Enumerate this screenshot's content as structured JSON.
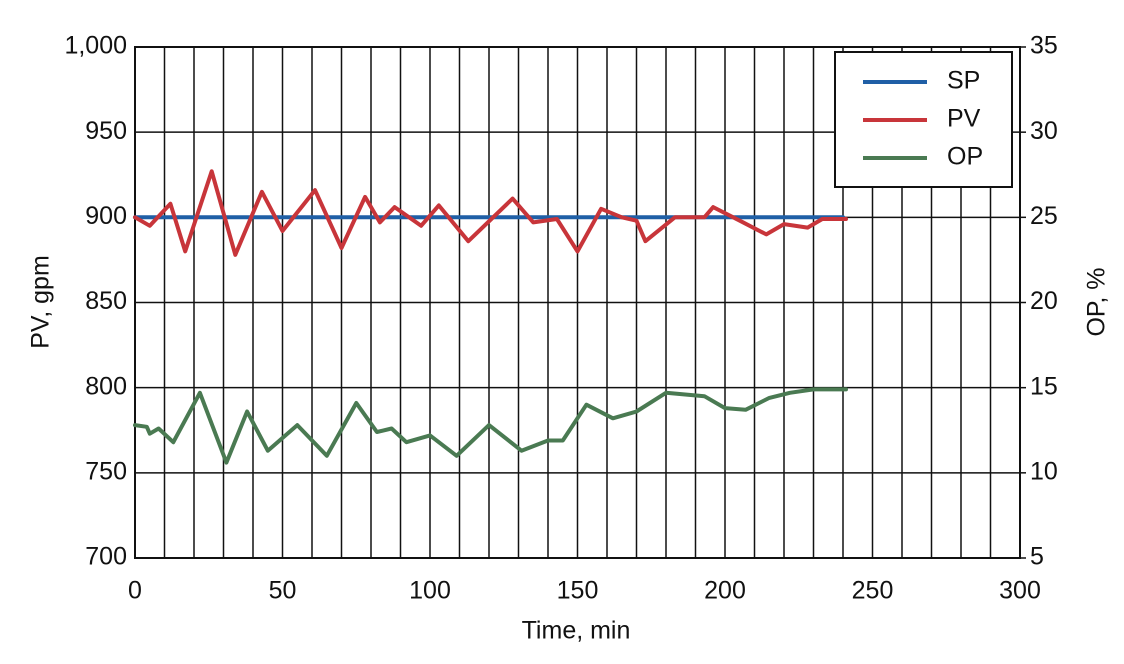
{
  "chart_data": {
    "type": "line",
    "x_label": "Time, min",
    "y_label": "PV, gpm",
    "y2_label": "OP, %",
    "xlim": [
      0,
      300
    ],
    "xticks": [
      0,
      50,
      100,
      150,
      200,
      250,
      300
    ],
    "xgrid": [
      0,
      10,
      20,
      30,
      40,
      50,
      60,
      70,
      80,
      90,
      100,
      110,
      120,
      130,
      140,
      150,
      160,
      170,
      180,
      190,
      200,
      210,
      220,
      230,
      240,
      250,
      260,
      270,
      280,
      290,
      300
    ],
    "ylim": [
      700,
      1000
    ],
    "yticks": [
      700,
      750,
      800,
      850,
      900,
      950,
      {
        "value": 1000,
        "label": "1,000"
      }
    ],
    "y2lim": [
      5,
      35
    ],
    "y2ticks": [
      5,
      10,
      15,
      20,
      25,
      30,
      35
    ],
    "grid": true,
    "legend": "upper right",
    "series": [
      {
        "name": "SP",
        "color": "#1f5fa6",
        "x": [
          0,
          240
        ],
        "values": [
          900,
          900
        ]
      },
      {
        "name": "PV",
        "color": "#c8353a",
        "x": [
          0,
          5,
          12,
          17,
          26,
          34,
          43,
          50,
          61,
          70,
          78,
          83,
          88,
          97,
          103,
          113,
          128,
          135,
          143,
          150,
          158,
          165,
          170,
          173,
          183,
          193,
          196,
          205,
          214,
          220,
          228,
          233,
          241
        ],
        "values": [
          900,
          895,
          908,
          880,
          927,
          878,
          915,
          892,
          916,
          882,
          912,
          897,
          906,
          895,
          907,
          886,
          911,
          897,
          899,
          880,
          905,
          900,
          898,
          886,
          900,
          900,
          906,
          898,
          890,
          896,
          894,
          899,
          899
        ]
      },
      {
        "name": "OP",
        "color": "#4a7a52",
        "axis": "y2",
        "x": [
          0,
          4,
          5,
          8,
          13,
          22,
          31,
          38,
          45,
          55,
          65,
          75,
          82,
          87,
          92,
          100,
          109,
          120,
          131,
          140,
          145,
          153,
          162,
          170,
          180,
          193,
          200,
          207,
          215,
          222,
          230,
          241
        ],
        "values": [
          12.8,
          12.7,
          12.3,
          12.6,
          11.8,
          14.7,
          10.6,
          13.6,
          11.3,
          12.8,
          11.0,
          14.1,
          12.4,
          12.6,
          11.8,
          12.2,
          11.0,
          12.8,
          11.3,
          11.9,
          11.9,
          14.0,
          13.2,
          13.6,
          14.7,
          14.5,
          13.8,
          13.7,
          14.4,
          14.7,
          14.9,
          14.9
        ]
      }
    ]
  }
}
